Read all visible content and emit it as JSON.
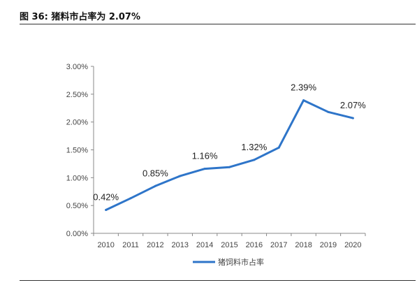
{
  "figure": {
    "title": "图 36:  猪料市占率为 2.07%"
  },
  "chart_data": {
    "type": "line",
    "title": "",
    "xlabel": "",
    "ylabel": "",
    "x": [
      "2010",
      "2011",
      "2012",
      "2013",
      "2014",
      "2015",
      "2016",
      "2017",
      "2018",
      "2019",
      "2020"
    ],
    "ylim": [
      0,
      3.0
    ],
    "yticks": [
      "0.00%",
      "0.50%",
      "1.00%",
      "1.50%",
      "2.00%",
      "2.50%",
      "3.00%"
    ],
    "series": [
      {
        "name": "猪饲料市占率",
        "color": "#2e75c9",
        "values": [
          0.42,
          0.63,
          0.85,
          1.03,
          1.16,
          1.19,
          1.32,
          1.54,
          2.39,
          2.18,
          2.07
        ]
      }
    ],
    "data_labels": [
      {
        "index": 0,
        "text": "0.42%"
      },
      {
        "index": 2,
        "text": "0.85%"
      },
      {
        "index": 4,
        "text": "1.16%"
      },
      {
        "index": 6,
        "text": "1.32%"
      },
      {
        "index": 8,
        "text": "2.39%"
      },
      {
        "index": 10,
        "text": "2.07%"
      }
    ],
    "grid": false,
    "legend_position": "bottom"
  }
}
